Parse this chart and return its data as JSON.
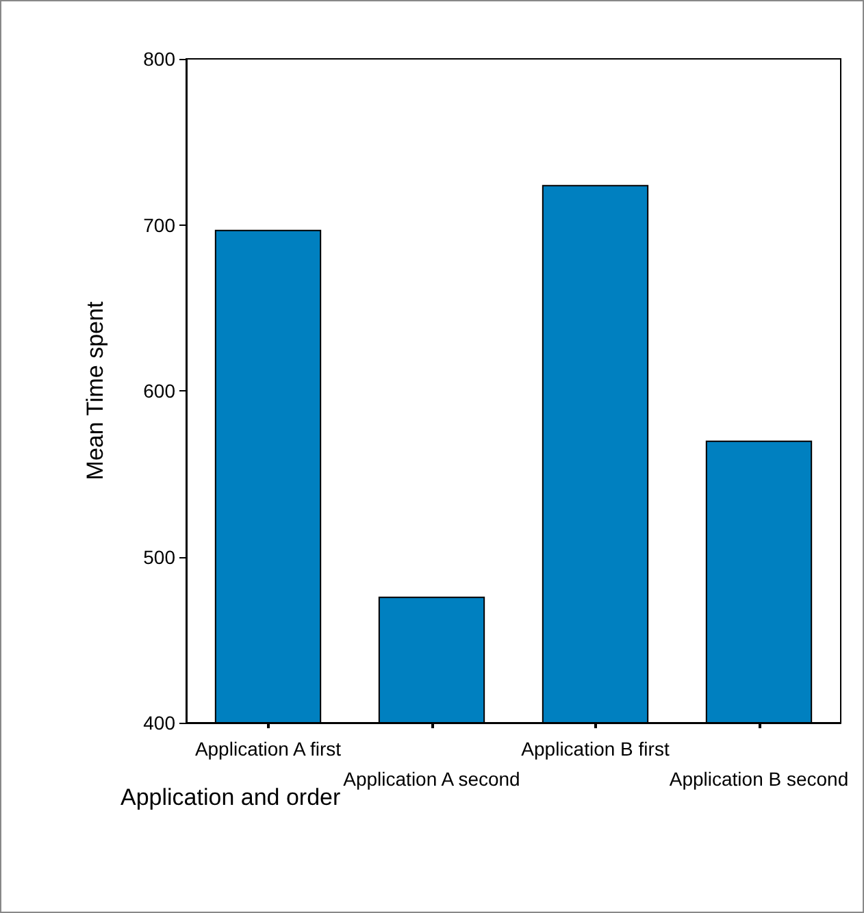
{
  "chart_data": {
    "type": "bar",
    "xlabel": "Application and order",
    "ylabel": "Mean Time spent",
    "categories": [
      "Application A first",
      "Application A second",
      "Application B first",
      "Application B second"
    ],
    "values": [
      697,
      476,
      724,
      570
    ],
    "color": "#0080c0",
    "ylim": [
      400,
      800
    ],
    "yticks": [
      400,
      500,
      600,
      700,
      800
    ],
    "grid": false
  }
}
